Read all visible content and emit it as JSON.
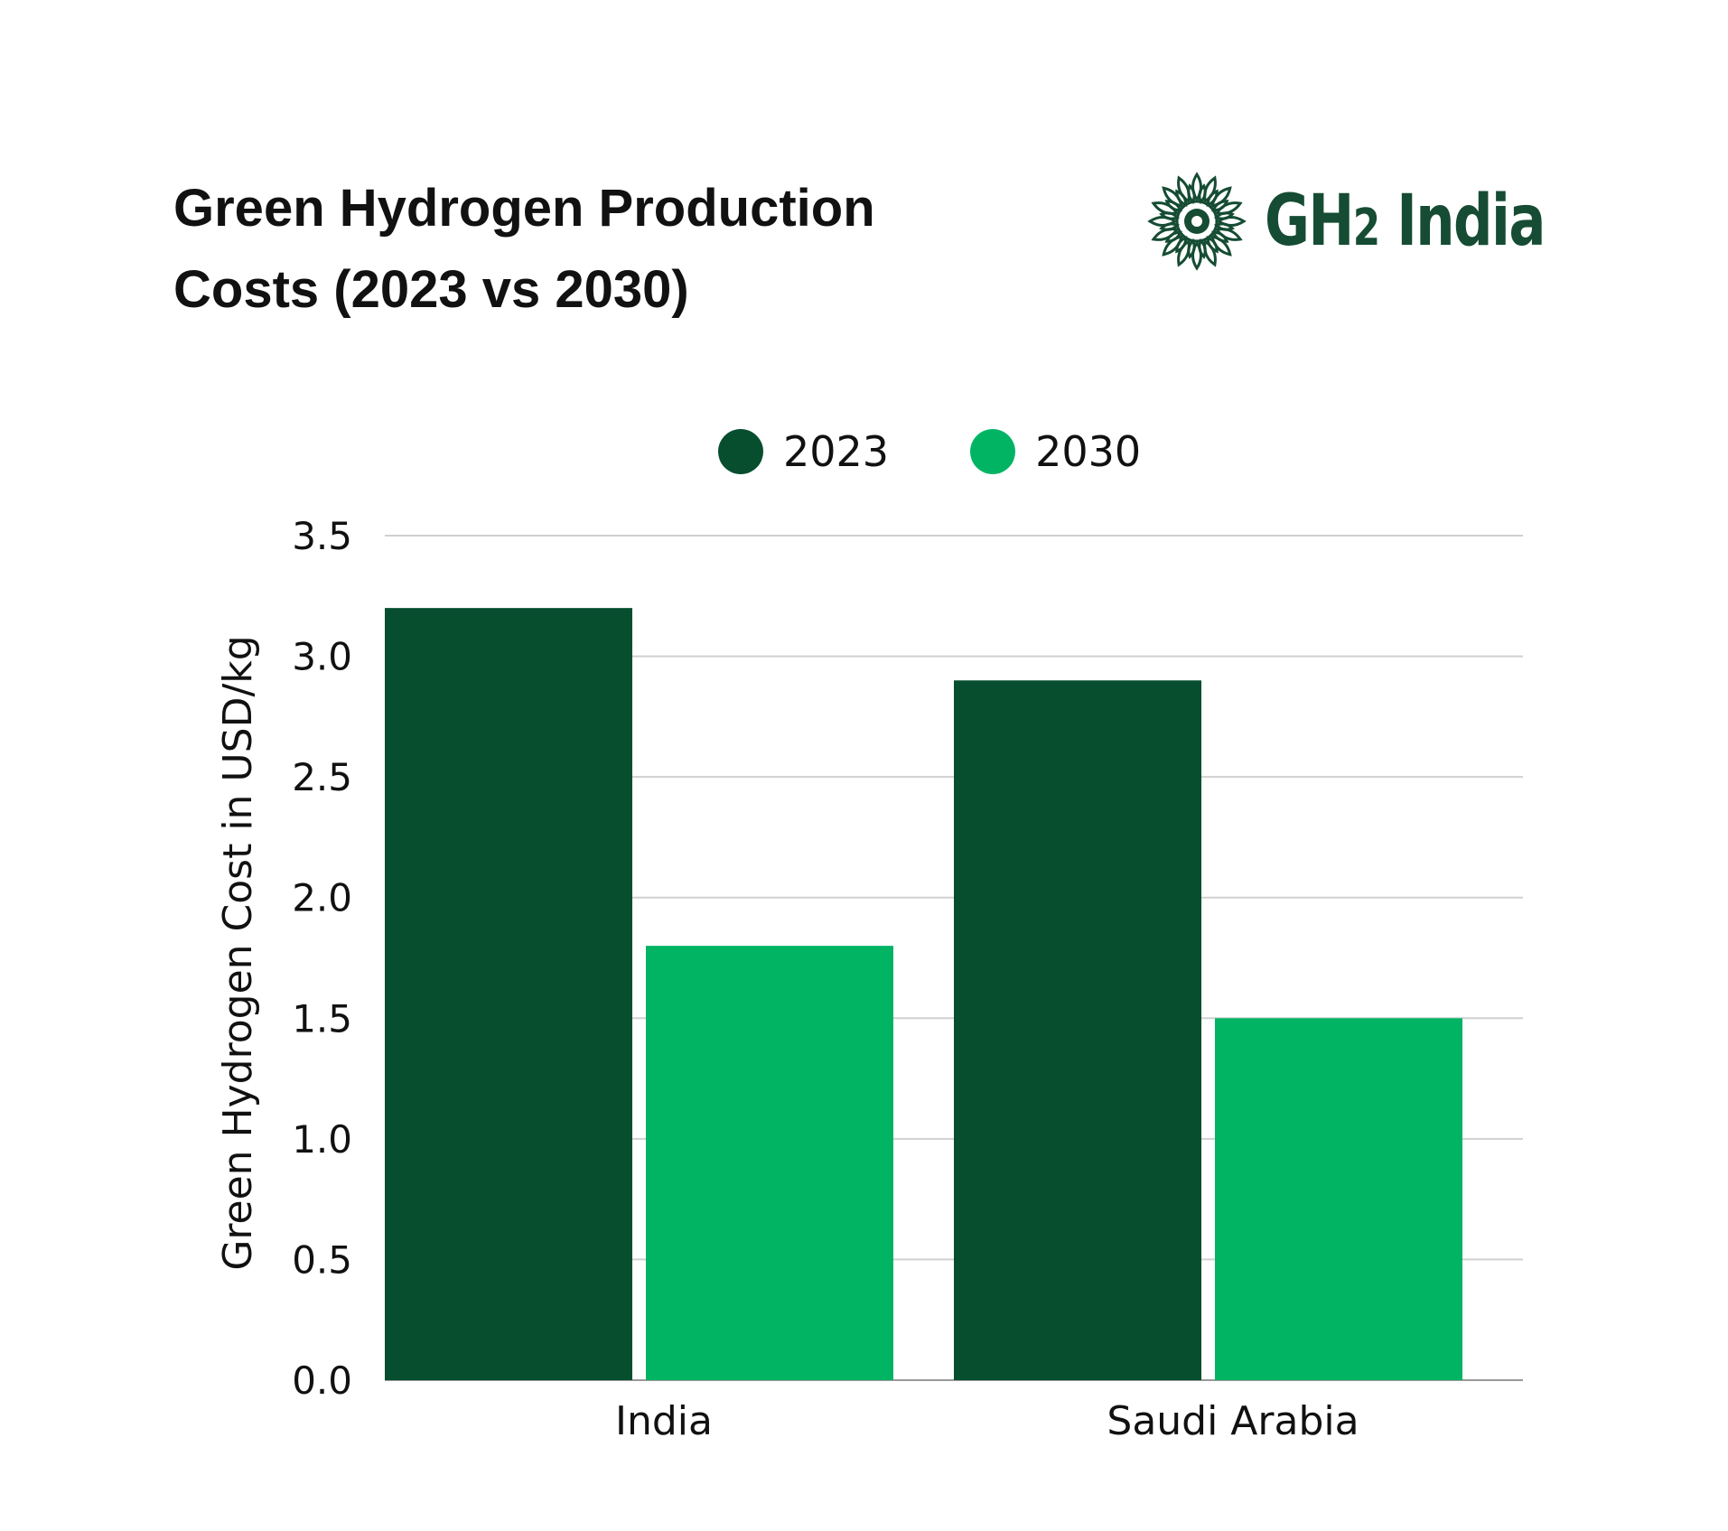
{
  "logo": {
    "text_main": "GH",
    "text_sub": "2",
    "text_rest": " India",
    "color": "#154c33"
  },
  "chart_data": {
    "type": "bar",
    "title": "Green Hydrogen Production Costs (2023 vs 2030)",
    "title_lines": [
      "Green Hydrogen Production",
      "Costs (2023 vs 2030)"
    ],
    "categories": [
      "India",
      "Saudi Arabia"
    ],
    "series": [
      {
        "name": "2023",
        "values": [
          3.2,
          2.9
        ],
        "color": "#064e2e"
      },
      {
        "name": "2030",
        "values": [
          1.8,
          1.5
        ],
        "color": "#00b464"
      }
    ],
    "xlabel": "",
    "ylabel": "Green Hydrogen Cost in USD/kg",
    "ylim": [
      0,
      3.5
    ],
    "yticks": [
      "0.0",
      "0.5",
      "1.0",
      "1.5",
      "2.0",
      "2.5",
      "3.0",
      "3.5"
    ],
    "grid": true,
    "legend_position": "top-center"
  }
}
